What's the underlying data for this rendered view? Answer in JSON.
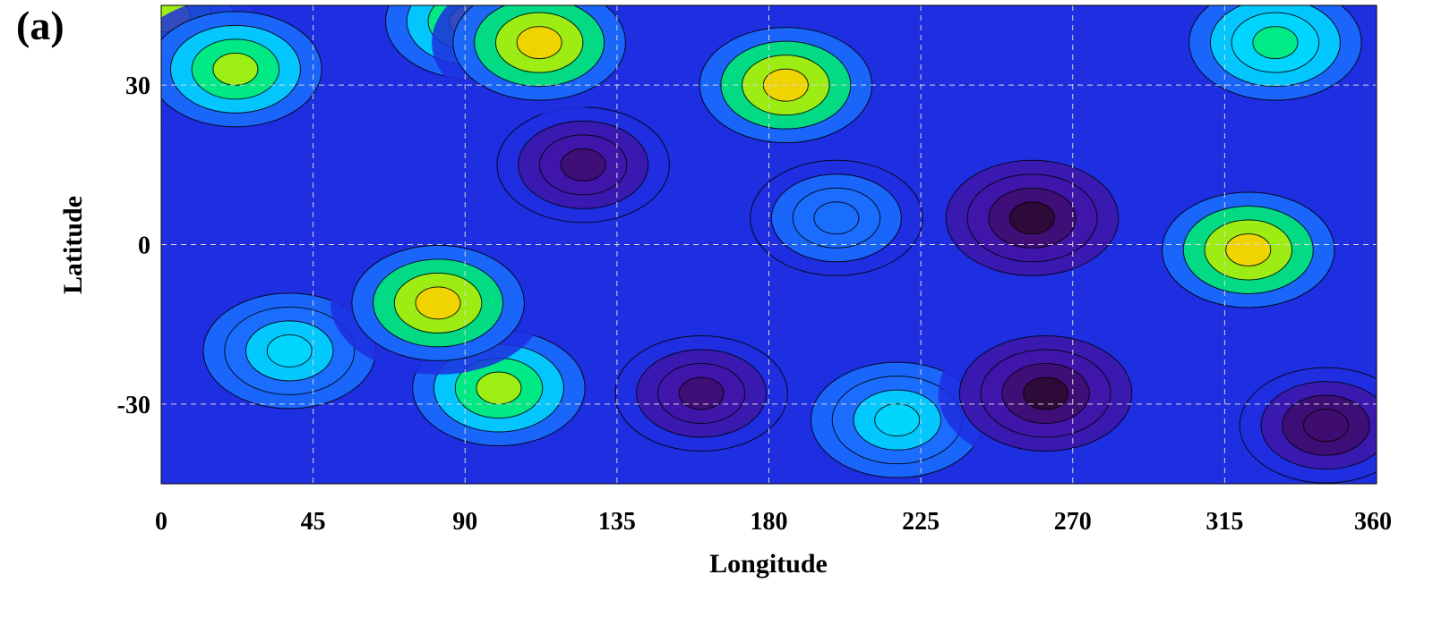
{
  "panel_label": "(a)",
  "chart_data": {
    "type": "heatmap",
    "title": "",
    "xlabel": "Longitude",
    "ylabel": "Latitude",
    "xlim": [
      0,
      360
    ],
    "ylim": [
      -45,
      45
    ],
    "xticks": [
      0,
      45,
      90,
      135,
      180,
      225,
      270,
      315,
      360
    ],
    "yticks": [
      -30,
      0,
      30
    ],
    "grid": true,
    "grid_style": "dashed",
    "colormap": [
      "#2b0a2e",
      "#3f0d6e",
      "#4016a8",
      "#1f2ee0",
      "#1a6fff",
      "#00d8ff",
      "#00f070",
      "#b8f000",
      "#ffd000",
      "#ff8800"
    ],
    "contours": true,
    "features": [
      {
        "lon": 22,
        "lat": 33,
        "level": 0.82
      },
      {
        "lon": 2,
        "lat": 43,
        "level": 0.78
      },
      {
        "lon": 112,
        "lat": 38,
        "level": 0.92
      },
      {
        "lon": 92,
        "lat": 42,
        "level": 0.8
      },
      {
        "lon": 185,
        "lat": 30,
        "level": 0.88
      },
      {
        "lon": 82,
        "lat": -11,
        "level": 0.9
      },
      {
        "lon": 100,
        "lat": -27,
        "level": 0.82
      },
      {
        "lon": 322,
        "lat": -1,
        "level": 0.88
      },
      {
        "lon": 330,
        "lat": 38,
        "level": 0.65
      },
      {
        "lon": 218,
        "lat": -33,
        "level": 0.6
      },
      {
        "lon": 38,
        "lat": -20,
        "level": 0.55
      },
      {
        "lon": 200,
        "lat": 5,
        "level": 0.48
      },
      {
        "lon": 258,
        "lat": 5,
        "level": 0.02
      },
      {
        "lon": 262,
        "lat": -28,
        "level": 0.02
      },
      {
        "lon": 160,
        "lat": -28,
        "level": 0.12
      },
      {
        "lon": 125,
        "lat": 15,
        "level": 0.14
      },
      {
        "lon": 345,
        "lat": -34,
        "level": 0.08
      }
    ]
  }
}
